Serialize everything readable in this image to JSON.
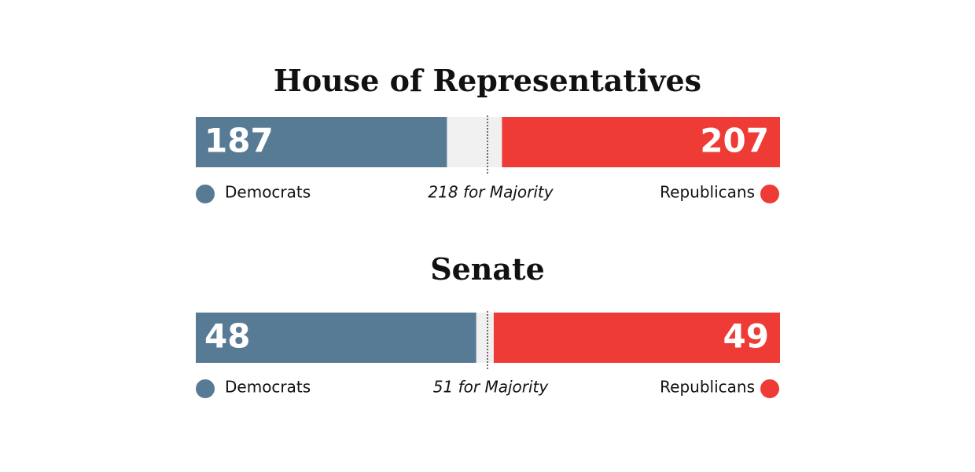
{
  "chart_data": [
    {
      "type": "bar",
      "title": "House of Representatives",
      "series": [
        {
          "name": "Democrats",
          "color": "#587b95",
          "values": [
            187
          ]
        },
        {
          "name": "Republicans",
          "color": "#ef3b36",
          "values": [
            207
          ]
        }
      ],
      "xlim": [
        0,
        435
      ],
      "annotation": {
        "value": 218,
        "label": "218 for Majority"
      }
    },
    {
      "type": "bar",
      "title": "Senate",
      "series": [
        {
          "name": "Democrats",
          "color": "#587b95",
          "values": [
            48
          ]
        },
        {
          "name": "Republicans",
          "color": "#ef3b36",
          "values": [
            49
          ]
        }
      ],
      "xlim": [
        0,
        100
      ],
      "annotation": {
        "value": 51,
        "label": "51 for Majority"
      }
    }
  ]
}
